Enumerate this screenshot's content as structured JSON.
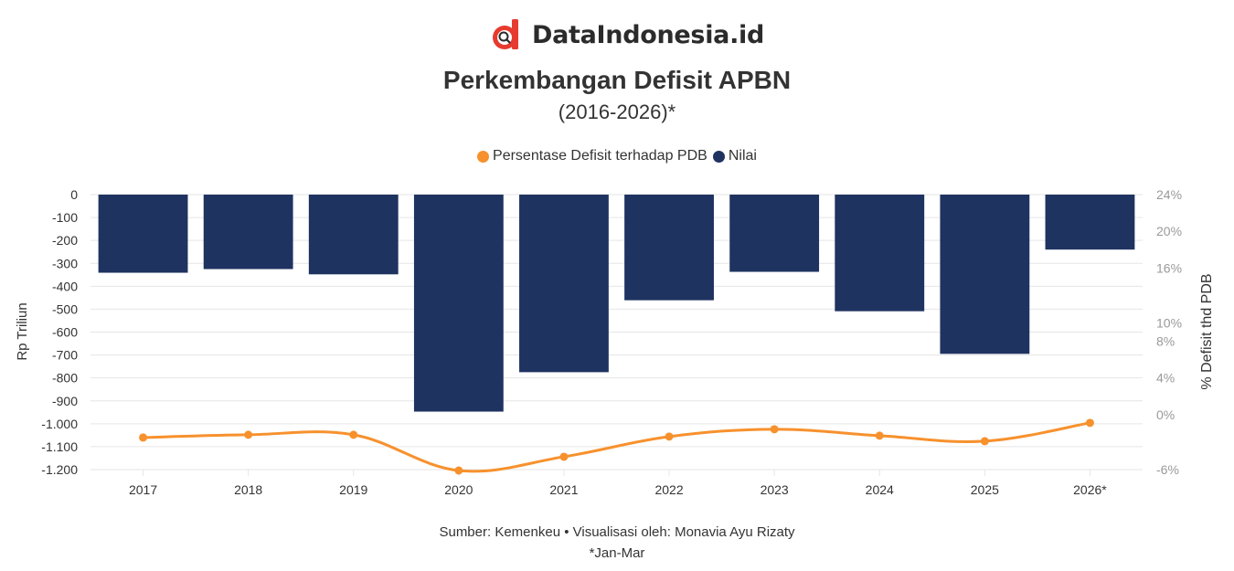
{
  "brand": {
    "name": "DataIndonesia.id",
    "icon": "dataindonesia-logo-icon"
  },
  "colors": {
    "bar": "#1f3361",
    "line": "#f7912d",
    "grid": "#e6e6e6",
    "text": "#333333",
    "muted": "#999999",
    "logo_red": "#e63b2e"
  },
  "chart_data": {
    "type": "bar",
    "title": "Perkembangan Defisit APBN",
    "subtitle": "(2016-2026)*",
    "categories": [
      "2017",
      "2018",
      "2019",
      "2020",
      "2021",
      "2022",
      "2023",
      "2024",
      "2025",
      "2026*"
    ],
    "series": [
      {
        "name": "Nilai",
        "type": "bar",
        "axis": "left",
        "values": [
          -341,
          -325,
          -348,
          -947,
          -775,
          -461,
          -337,
          -509,
          -695,
          -240
        ]
      },
      {
        "name": "Persentase Defisit terhadap PDB",
        "type": "line",
        "axis": "right",
        "values": [
          -2.5,
          -2.2,
          -2.2,
          -6.1,
          -4.6,
          -2.4,
          -1.6,
          -2.3,
          -2.9,
          -0.9
        ]
      }
    ],
    "legend_order": [
      "Persentase Defisit terhadap PDB",
      "Nilai"
    ],
    "legend_position": "top-center",
    "ylabel": "Rp Triliun",
    "ylim": [
      -1200,
      0
    ],
    "yticks": [
      0,
      -100,
      -200,
      -300,
      -400,
      -500,
      -600,
      -700,
      -800,
      -900,
      -1000,
      -1100,
      -1200
    ],
    "ytick_labels": [
      "0",
      "-100",
      "-200",
      "-300",
      "-400",
      "-500",
      "-600",
      "-700",
      "-800",
      "-900",
      "-1.000",
      "-1.100",
      "-1.200"
    ],
    "y2label": "% Defisit thd PDB",
    "y2lim": [
      -6,
      24
    ],
    "y2ticks": [
      24,
      20,
      16,
      10,
      8,
      4,
      0,
      -6
    ],
    "y2tick_labels": [
      "24%",
      "20%",
      "16%",
      "10%",
      "8%",
      "4%",
      "0%",
      "-6%"
    ],
    "grid": true
  },
  "footer": {
    "source": "Sumber: Kemenkeu • Visualisasi oleh: Monavia Ayu Rizaty",
    "note": "*Jan-Mar"
  }
}
